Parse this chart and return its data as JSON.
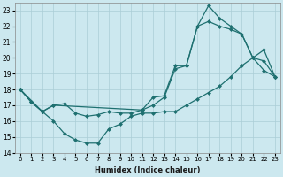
{
  "xlabel": "Humidex (Indice chaleur)",
  "ylim": [
    14,
    23.5
  ],
  "xlim": [
    -0.5,
    23.5
  ],
  "yticks": [
    14,
    15,
    16,
    17,
    18,
    19,
    20,
    21,
    22,
    23
  ],
  "xticks": [
    0,
    1,
    2,
    3,
    4,
    5,
    6,
    7,
    8,
    9,
    10,
    11,
    12,
    13,
    14,
    15,
    16,
    17,
    18,
    19,
    20,
    21,
    22,
    23
  ],
  "bg_color": "#cce8ef",
  "grid_color": "#aacdd6",
  "line_color": "#1e7070",
  "line1_x": [
    0,
    1,
    2,
    3,
    4,
    5,
    6,
    7,
    8,
    9,
    10,
    11,
    12,
    13,
    14,
    15,
    16,
    17,
    18,
    19,
    20,
    21,
    22,
    23
  ],
  "line1_y": [
    18.0,
    17.2,
    16.6,
    16.0,
    15.2,
    14.8,
    14.6,
    14.6,
    15.5,
    15.8,
    16.3,
    16.5,
    16.5,
    16.6,
    16.6,
    17.0,
    17.4,
    17.8,
    18.2,
    18.8,
    19.5,
    20.0,
    20.5,
    18.8
  ],
  "line2_x": [
    0,
    1,
    2,
    3,
    4,
    5,
    6,
    7,
    8,
    9,
    10,
    11,
    12,
    13,
    14,
    15,
    16,
    17,
    18,
    19,
    20,
    21,
    22,
    23
  ],
  "line2_y": [
    18.0,
    17.2,
    16.6,
    17.0,
    17.1,
    16.5,
    16.3,
    16.4,
    16.6,
    16.5,
    16.5,
    16.7,
    17.0,
    17.5,
    19.3,
    19.5,
    22.0,
    22.3,
    22.0,
    21.8,
    21.5,
    20.0,
    19.2,
    18.8
  ],
  "line3_x": [
    0,
    2,
    3,
    11,
    12,
    13,
    14,
    15,
    16,
    17,
    18,
    19,
    20,
    21,
    22,
    23
  ],
  "line3_y": [
    18.0,
    16.6,
    17.0,
    16.7,
    17.5,
    17.6,
    19.5,
    19.5,
    22.0,
    23.3,
    22.5,
    22.0,
    21.5,
    20.0,
    19.8,
    18.8
  ]
}
